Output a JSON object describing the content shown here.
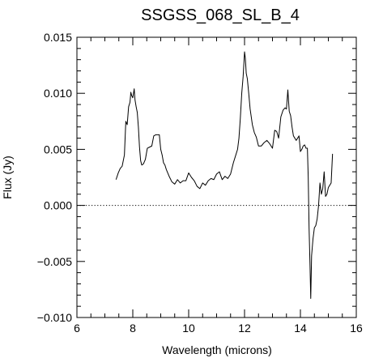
{
  "chart_data": {
    "type": "line",
    "title": "SSGSS_068_SL_B_4",
    "xlabel": "Wavelength (microns)",
    "ylabel": "Flux (Jy)",
    "xlim": [
      6,
      16
    ],
    "ylim": [
      -0.01,
      0.015
    ],
    "x_ticks": {
      "major": [
        6,
        8,
        10,
        12,
        14,
        16
      ],
      "major_labels": [
        "6",
        "8",
        "10",
        "12",
        "14",
        "16"
      ],
      "minor_step": 0.5
    },
    "y_ticks": {
      "major": [
        -0.01,
        -0.005,
        0.0,
        0.005,
        0.01,
        0.015
      ],
      "major_labels": [
        "−0.010",
        "−0.005",
        "0.000",
        "0.005",
        "0.010",
        "0.015"
      ],
      "minor_step": 0.001
    },
    "reference_lines": [
      {
        "y": 0.0,
        "style": "dotted"
      }
    ],
    "grid": false,
    "legend": "none",
    "series": [
      {
        "color": "#000000",
        "x": [
          7.4,
          7.48,
          7.55,
          7.62,
          7.7,
          7.75,
          7.8,
          7.85,
          7.9,
          7.93,
          7.96,
          8.0,
          8.05,
          8.08,
          8.12,
          8.16,
          8.2,
          8.24,
          8.28,
          8.32,
          8.38,
          8.45,
          8.52,
          8.6,
          8.68,
          8.75,
          8.82,
          8.88,
          8.95,
          9.0,
          9.05,
          9.1,
          9.15,
          9.2,
          9.3,
          9.4,
          9.5,
          9.6,
          9.7,
          9.8,
          9.9,
          10.0,
          10.1,
          10.2,
          10.3,
          10.4,
          10.5,
          10.6,
          10.7,
          10.8,
          10.9,
          11.0,
          11.1,
          11.2,
          11.3,
          11.4,
          11.5,
          11.6,
          11.7,
          11.75,
          11.8,
          11.85,
          11.9,
          11.95,
          12.0,
          12.03,
          12.06,
          12.1,
          12.15,
          12.2,
          12.28,
          12.35,
          12.42,
          12.5,
          12.6,
          12.7,
          12.8,
          12.9,
          13.0,
          13.08,
          13.15,
          13.22,
          13.3,
          13.38,
          13.45,
          13.5,
          13.55,
          13.6,
          13.65,
          13.7,
          13.75,
          13.8,
          13.85,
          13.9,
          13.95,
          14.0,
          14.05,
          14.1,
          14.15,
          14.2,
          14.25,
          14.28,
          14.31,
          14.34,
          14.37,
          14.4,
          14.45,
          14.5,
          14.55,
          14.6,
          14.65,
          14.7,
          14.75,
          14.8,
          14.85,
          14.9,
          14.95,
          15.0,
          15.05,
          15.1,
          15.15
        ],
        "values": [
          0.0023,
          0.0029,
          0.0033,
          0.0035,
          0.0045,
          0.0075,
          0.0072,
          0.0088,
          0.0092,
          0.0101,
          0.0098,
          0.0096,
          0.0104,
          0.0094,
          0.0088,
          0.0083,
          0.007,
          0.0052,
          0.004,
          0.0036,
          0.0037,
          0.0041,
          0.0051,
          0.0052,
          0.0053,
          0.0062,
          0.0063,
          0.0063,
          0.0063,
          0.005,
          0.0045,
          0.0038,
          0.0036,
          0.0032,
          0.0026,
          0.0021,
          0.0019,
          0.0023,
          0.002,
          0.0022,
          0.0022,
          0.0029,
          0.0025,
          0.0022,
          0.0017,
          0.0015,
          0.002,
          0.0018,
          0.0022,
          0.0024,
          0.0023,
          0.0028,
          0.003,
          0.0023,
          0.0026,
          0.0024,
          0.0028,
          0.0038,
          0.0046,
          0.005,
          0.006,
          0.0078,
          0.01,
          0.0115,
          0.0137,
          0.0131,
          0.0118,
          0.0113,
          0.01,
          0.0086,
          0.0072,
          0.0065,
          0.0061,
          0.0053,
          0.0053,
          0.0056,
          0.0058,
          0.0055,
          0.0051,
          0.0067,
          0.0066,
          0.006,
          0.0079,
          0.0085,
          0.0087,
          0.0086,
          0.0103,
          0.0084,
          0.008,
          0.007,
          0.0062,
          0.006,
          0.0058,
          0.006,
          0.0062,
          0.0048,
          0.005,
          0.0053,
          0.0054,
          0.0051,
          0.0051,
          0.0025,
          -0.002,
          -0.005,
          -0.0083,
          -0.0045,
          -0.003,
          -0.002,
          -0.0018,
          -0.0012,
          0.0,
          0.002,
          0.001,
          0.0015,
          0.003,
          0.0008,
          0.001,
          0.0016,
          0.0018,
          0.002,
          0.0046
        ]
      }
    ]
  }
}
